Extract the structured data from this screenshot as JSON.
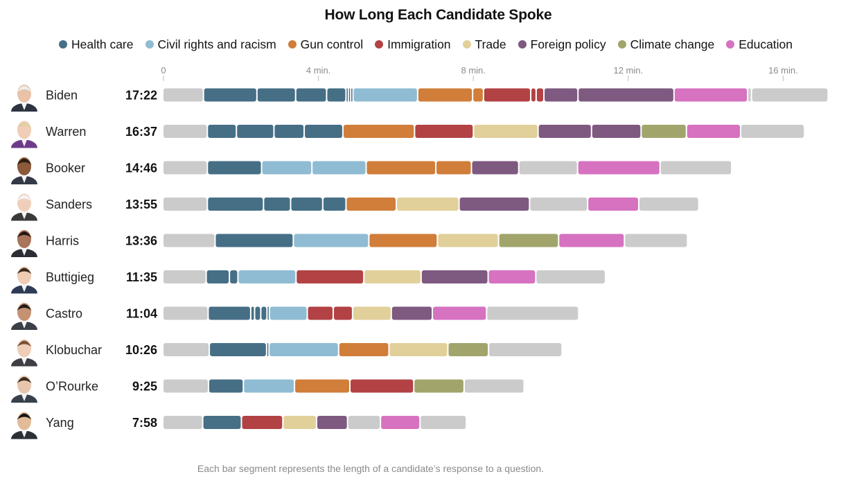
{
  "chart_data": {
    "type": "bar",
    "title": "How Long Each Candidate Spoke",
    "note": "Each bar segment represents the length of a candidate’s response to a question.",
    "x_ticks": [
      {
        "value": 0,
        "label": "0"
      },
      {
        "value": 4,
        "label": "4 min."
      },
      {
        "value": 8,
        "label": "8 min."
      },
      {
        "value": 12,
        "label": "12 min."
      },
      {
        "value": 16,
        "label": "16 min."
      }
    ],
    "xlim": [
      0,
      17.5
    ],
    "legend": [
      {
        "key": "health",
        "label": "Health care",
        "color": "#466f86"
      },
      {
        "key": "civil",
        "label": "Civil rights and racism",
        "color": "#8fbcd3"
      },
      {
        "key": "gun",
        "label": "Gun control",
        "color": "#d07e3a"
      },
      {
        "key": "immigration",
        "label": "Immigration",
        "color": "#b24244"
      },
      {
        "key": "trade",
        "label": "Trade",
        "color": "#e1d09a"
      },
      {
        "key": "foreign",
        "label": "Foreign policy",
        "color": "#7e5980"
      },
      {
        "key": "climate",
        "label": "Climate change",
        "color": "#a1a56c"
      },
      {
        "key": "education",
        "label": "Education",
        "color": "#d672c0"
      }
    ],
    "other_color": "#cbcbcb",
    "candidates": [
      {
        "name": "Biden",
        "time": "17:22",
        "avatar": {
          "skin": "#e9c2a8",
          "hair": "#ededed",
          "suit": "#2d3440"
        },
        "segments": [
          [
            "other",
            1.05
          ],
          [
            "health",
            1.38
          ],
          [
            "health",
            1.0
          ],
          [
            "health",
            0.8
          ],
          [
            "health",
            0.5
          ],
          [
            "health",
            0.06
          ],
          [
            "health",
            0.06
          ],
          [
            "health",
            0.06
          ],
          [
            "civil",
            1.67
          ],
          [
            "gun",
            1.42
          ],
          [
            "gun",
            0.28
          ],
          [
            "immigration",
            1.22
          ],
          [
            "immigration",
            0.14
          ],
          [
            "immigration",
            0.2
          ],
          [
            "foreign",
            0.88
          ],
          [
            "foreign",
            2.48
          ],
          [
            "education",
            1.9
          ],
          [
            "other",
            0.1
          ],
          [
            "other",
            1.98
          ]
        ]
      },
      {
        "name": "Warren",
        "time": "16:37",
        "avatar": {
          "skin": "#f0cdb6",
          "hair": "#e2cfa0",
          "suit": "#6d3b8a"
        },
        "segments": [
          [
            "other",
            1.15
          ],
          [
            "health",
            0.75
          ],
          [
            "health",
            0.97
          ],
          [
            "health",
            0.78
          ],
          [
            "health",
            1.0
          ],
          [
            "gun",
            1.85
          ],
          [
            "immigration",
            1.52
          ],
          [
            "trade",
            1.67
          ],
          [
            "foreign",
            1.38
          ],
          [
            "foreign",
            1.28
          ],
          [
            "climate",
            1.17
          ],
          [
            "education",
            1.4
          ],
          [
            "other",
            1.65
          ]
        ]
      },
      {
        "name": "Booker",
        "time": "14:46",
        "avatar": {
          "skin": "#8a5a3b",
          "hair": "#2b1d14",
          "suit": "#333a46"
        },
        "segments": [
          [
            "other",
            1.15
          ],
          [
            "health",
            1.4
          ],
          [
            "civil",
            1.3
          ],
          [
            "civil",
            1.4
          ],
          [
            "gun",
            1.8
          ],
          [
            "gun",
            0.92
          ],
          [
            "foreign",
            1.22
          ],
          [
            "other",
            1.52
          ],
          [
            "education",
            2.13
          ],
          [
            "other",
            1.85
          ]
        ]
      },
      {
        "name": "Sanders",
        "time": "13:55",
        "avatar": {
          "skin": "#efcfbb",
          "hair": "#f4f4f4",
          "suit": "#3a3a3a"
        },
        "segments": [
          [
            "other",
            1.15
          ],
          [
            "health",
            1.45
          ],
          [
            "health",
            0.7
          ],
          [
            "health",
            0.83
          ],
          [
            "health",
            0.6
          ],
          [
            "gun",
            1.3
          ],
          [
            "trade",
            1.62
          ],
          [
            "foreign",
            1.82
          ],
          [
            "other",
            1.5
          ],
          [
            "education",
            1.32
          ],
          [
            "other",
            1.55
          ]
        ]
      },
      {
        "name": "Harris",
        "time": "13:36",
        "avatar": {
          "skin": "#a8745a",
          "hair": "#231712",
          "suit": "#2c2c34"
        },
        "segments": [
          [
            "other",
            1.35
          ],
          [
            "health",
            2.02
          ],
          [
            "civil",
            1.95
          ],
          [
            "gun",
            1.77
          ],
          [
            "trade",
            1.58
          ],
          [
            "climate",
            1.55
          ],
          [
            "education",
            1.7
          ],
          [
            "other",
            1.63
          ]
        ]
      },
      {
        "name": "Buttigieg",
        "time": "11:35",
        "avatar": {
          "skin": "#efcdb5",
          "hair": "#3b2a1f",
          "suit": "#2e3b56"
        },
        "segments": [
          [
            "other",
            1.12
          ],
          [
            "health",
            0.6
          ],
          [
            "health",
            0.22
          ],
          [
            "civil",
            1.5
          ],
          [
            "immigration",
            1.75
          ],
          [
            "trade",
            1.48
          ],
          [
            "foreign",
            1.73
          ],
          [
            "education",
            1.23
          ],
          [
            "other",
            1.8
          ]
        ]
      },
      {
        "name": "Castro",
        "time": "11:04",
        "avatar": {
          "skin": "#c49272",
          "hair": "#1e1a18",
          "suit": "#3a3f48"
        },
        "segments": [
          [
            "other",
            1.17
          ],
          [
            "health",
            1.1
          ],
          [
            "health",
            0.1
          ],
          [
            "health",
            0.16
          ],
          [
            "health",
            0.16
          ],
          [
            "health",
            0.06
          ],
          [
            "civil",
            0.98
          ],
          [
            "immigration",
            0.67
          ],
          [
            "immigration",
            0.5
          ],
          [
            "trade",
            1.0
          ],
          [
            "foreign",
            1.06
          ],
          [
            "education",
            1.4
          ],
          [
            "other",
            2.38
          ]
        ]
      },
      {
        "name": "Klobuchar",
        "time": "10:26",
        "avatar": {
          "skin": "#efcdb8",
          "hair": "#7a5134",
          "suit": "#3e3e44"
        },
        "segments": [
          [
            "other",
            1.2
          ],
          [
            "health",
            1.48
          ],
          [
            "health",
            0.06
          ],
          [
            "civil",
            1.8
          ],
          [
            "gun",
            1.3
          ],
          [
            "trade",
            1.52
          ],
          [
            "climate",
            1.05
          ],
          [
            "other",
            1.9
          ]
        ]
      },
      {
        "name": "O’Rourke",
        "time": "9:25",
        "avatar": {
          "skin": "#e8c6ae",
          "hair": "#3a2c22",
          "suit": "#38404c"
        },
        "segments": [
          [
            "other",
            1.18
          ],
          [
            "health",
            0.9
          ],
          [
            "civil",
            1.32
          ],
          [
            "gun",
            1.43
          ],
          [
            "immigration",
            1.65
          ],
          [
            "climate",
            1.3
          ],
          [
            "other",
            1.55
          ]
        ]
      },
      {
        "name": "Yang",
        "time": "7:58",
        "avatar": {
          "skin": "#e2bb98",
          "hair": "#161616",
          "suit": "#2b2f36"
        },
        "segments": [
          [
            "other",
            1.03
          ],
          [
            "health",
            1.0
          ],
          [
            "immigration",
            1.07
          ],
          [
            "trade",
            0.87
          ],
          [
            "foreign",
            0.8
          ],
          [
            "other",
            0.85
          ],
          [
            "education",
            1.02
          ],
          [
            "other",
            1.2
          ]
        ]
      }
    ]
  }
}
